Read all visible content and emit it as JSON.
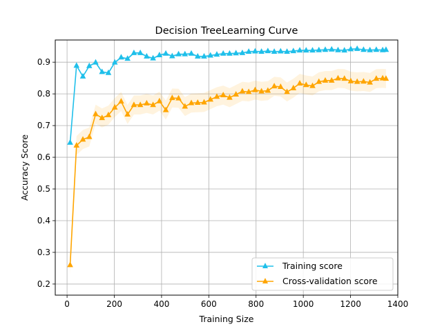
{
  "chart_data": {
    "type": "line",
    "title": "Decision TreeLearning Curve",
    "xlabel": "Training Size",
    "ylabel": "Accuracy Score",
    "xlim": [
      -50,
      1400
    ],
    "ylim": [
      0.165,
      0.97
    ],
    "xticks": [
      0,
      200,
      400,
      600,
      800,
      1000,
      1200,
      1400
    ],
    "yticks": [
      0.2,
      0.3,
      0.4,
      0.5,
      0.6,
      0.7,
      0.8,
      0.9
    ],
    "xtick_labels": [
      "0",
      "200",
      "400",
      "600",
      "800",
      "1000",
      "1200",
      "1400"
    ],
    "ytick_labels": [
      "0.2",
      "0.3",
      "0.4",
      "0.5",
      "0.6",
      "0.7",
      "0.8",
      "0.9"
    ],
    "grid": true,
    "legend_position": "lower-right",
    "x": [
      13,
      40,
      67,
      94,
      121,
      148,
      175,
      202,
      229,
      256,
      283,
      310,
      337,
      364,
      391,
      418,
      445,
      472,
      499,
      526,
      553,
      580,
      607,
      634,
      661,
      688,
      715,
      742,
      769,
      796,
      823,
      850,
      877,
      904,
      931,
      958,
      985,
      1012,
      1039,
      1066,
      1093,
      1120,
      1147,
      1174,
      1201,
      1228,
      1255,
      1282,
      1309,
      1336,
      1350
    ],
    "series": [
      {
        "name": "Training score",
        "color": "#1fbfea",
        "values": [
          0.646,
          0.889,
          0.855,
          0.888,
          0.899,
          0.869,
          0.866,
          0.899,
          0.915,
          0.911,
          0.929,
          0.929,
          0.918,
          0.912,
          0.922,
          0.927,
          0.919,
          0.925,
          0.925,
          0.927,
          0.918,
          0.918,
          0.921,
          0.924,
          0.927,
          0.927,
          0.928,
          0.929,
          0.933,
          0.934,
          0.933,
          0.935,
          0.933,
          0.934,
          0.933,
          0.935,
          0.937,
          0.937,
          0.937,
          0.938,
          0.939,
          0.94,
          0.938,
          0.937,
          0.941,
          0.942,
          0.939,
          0.938,
          0.939,
          0.938,
          0.939
        ],
        "band": 0.004
      },
      {
        "name": "Cross-validation score",
        "color": "#ffa500",
        "values": [
          0.26,
          0.637,
          0.656,
          0.664,
          0.736,
          0.724,
          0.733,
          0.757,
          0.776,
          0.735,
          0.765,
          0.765,
          0.77,
          0.765,
          0.777,
          0.749,
          0.787,
          0.786,
          0.76,
          0.771,
          0.772,
          0.773,
          0.782,
          0.791,
          0.796,
          0.788,
          0.798,
          0.808,
          0.806,
          0.812,
          0.808,
          0.81,
          0.824,
          0.822,
          0.806,
          0.818,
          0.833,
          0.828,
          0.825,
          0.838,
          0.842,
          0.842,
          0.849,
          0.848,
          0.84,
          0.838,
          0.839,
          0.836,
          0.848,
          0.849,
          0.848
        ],
        "band": 0.03
      }
    ]
  }
}
